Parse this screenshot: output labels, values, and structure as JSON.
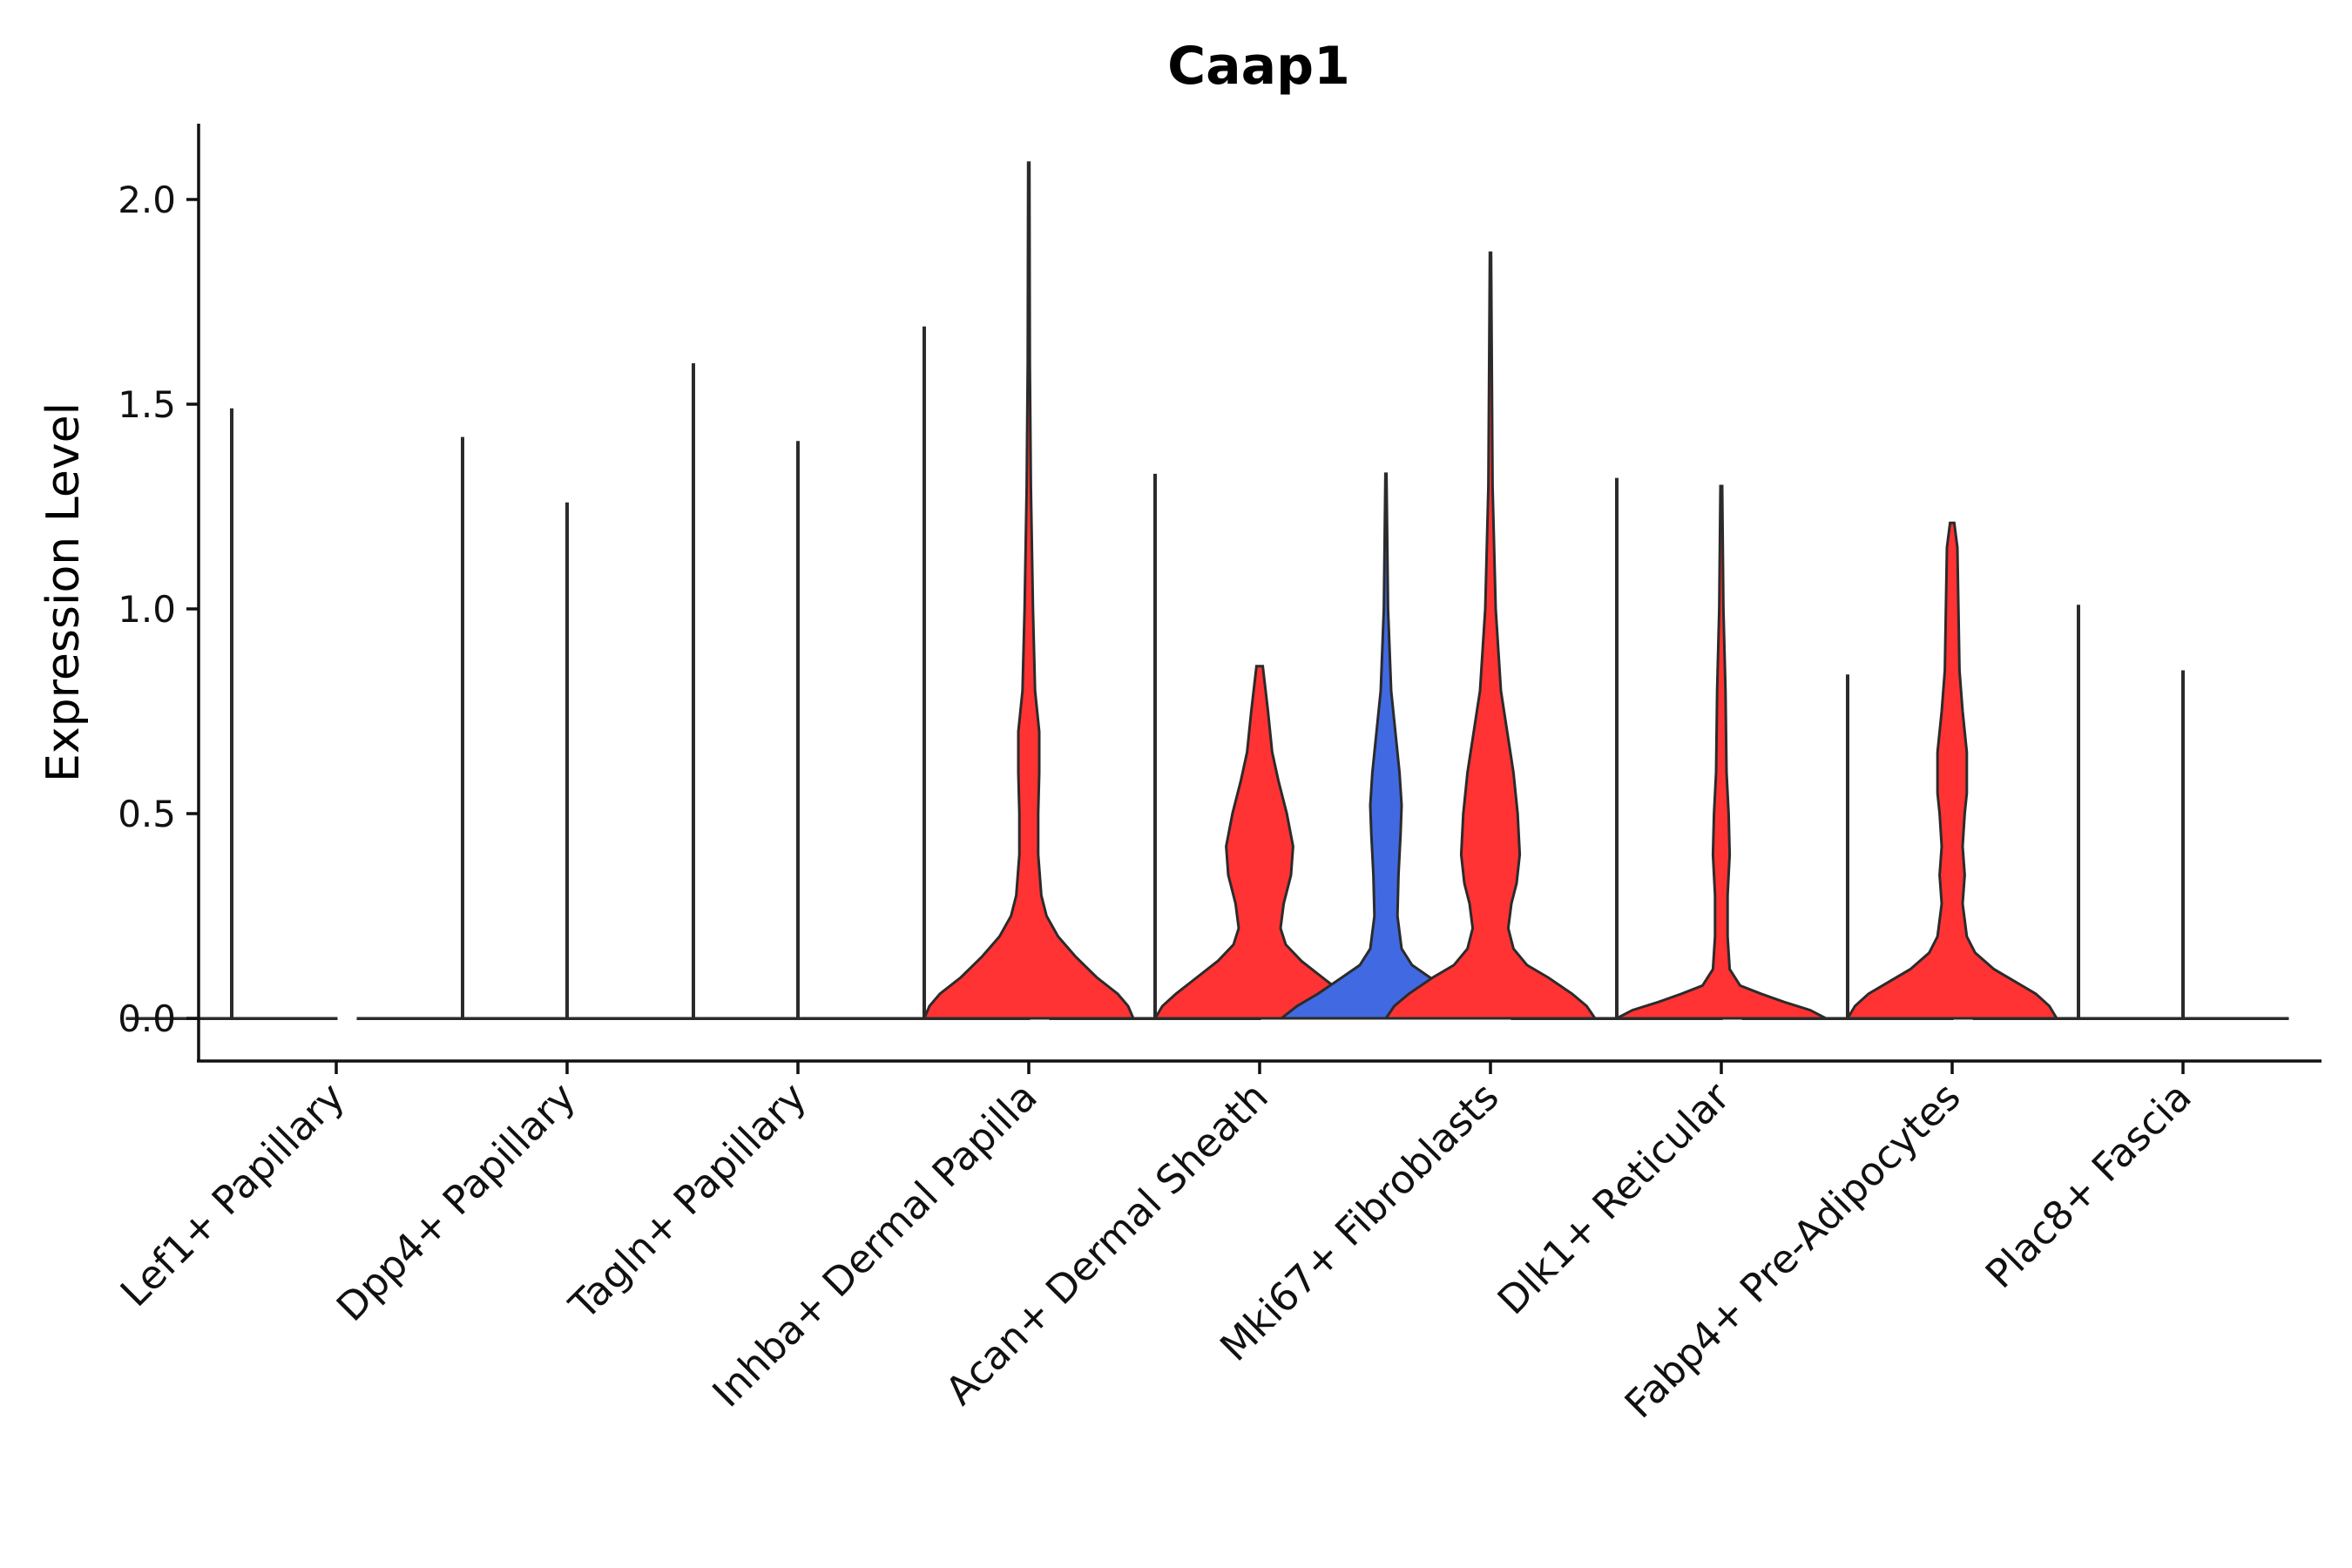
{
  "chart_data": {
    "type": "violin",
    "title": "Caap1",
    "xlabel": "",
    "ylabel": "Expression Level",
    "ylim": [
      -0.1,
      2.2
    ],
    "yticks": [
      "0.0",
      "0.5",
      "1.0",
      "1.5",
      "2.0"
    ],
    "categories": [
      "Lef1+ Papillary",
      "Dpp4+ Papillary",
      "Tagln+ Papillary",
      "Inhba+ Dermal Papilla",
      "Acan+ Dermal Sheath",
      "Mki67+ Fibroblasts",
      "Dlk1+ Reticular",
      "Fabp4+ Pre-Adipocytes",
      "Plac8+ Fascia"
    ],
    "split_groups": [
      "left",
      "right"
    ],
    "colors": {
      "neutral": "#555555",
      "blue": "#4169e1",
      "red": "#ff3333"
    },
    "violins": [
      {
        "category": "Lef1+ Papillary",
        "side": "left",
        "max": 1.49,
        "fill": "none",
        "profile": []
      },
      {
        "category": "Dpp4+ Papillary",
        "side": "left",
        "max": 1.42,
        "fill": "none",
        "profile": []
      },
      {
        "category": "Dpp4+ Papillary",
        "side": "right",
        "max": 1.26,
        "fill": "none",
        "profile": []
      },
      {
        "category": "Tagln+ Papillary",
        "side": "left",
        "max": 1.6,
        "fill": "none",
        "profile": []
      },
      {
        "category": "Tagln+ Papillary",
        "side": "right",
        "max": 1.41,
        "fill": "none",
        "profile": []
      },
      {
        "category": "Inhba+ Dermal Papilla",
        "side": "left",
        "max": 1.69,
        "fill": "none",
        "profile": []
      },
      {
        "category": "Inhba+ Dermal Papilla",
        "side": "right",
        "max": 2.09,
        "fill": "red",
        "profile": [
          [
            0,
            1.0
          ],
          [
            0.03,
            0.95
          ],
          [
            0.06,
            0.85
          ],
          [
            0.1,
            0.65
          ],
          [
            0.15,
            0.45
          ],
          [
            0.2,
            0.28
          ],
          [
            0.25,
            0.17
          ],
          [
            0.3,
            0.12
          ],
          [
            0.4,
            0.09
          ],
          [
            0.5,
            0.09
          ],
          [
            0.6,
            0.1
          ],
          [
            0.7,
            0.1
          ],
          [
            0.8,
            0.06
          ],
          [
            1.0,
            0.04
          ],
          [
            1.3,
            0.02
          ],
          [
            1.6,
            0.01
          ],
          [
            2.09,
            0.006
          ]
        ]
      },
      {
        "category": "Acan+ Dermal Sheath",
        "side": "left",
        "max": 1.33,
        "fill": "none",
        "profile": []
      },
      {
        "category": "Acan+ Dermal Sheath",
        "side": "right",
        "max": 0.86,
        "fill": "red",
        "profile": [
          [
            0,
            1.0
          ],
          [
            0.03,
            0.93
          ],
          [
            0.06,
            0.8
          ],
          [
            0.1,
            0.6
          ],
          [
            0.14,
            0.4
          ],
          [
            0.18,
            0.25
          ],
          [
            0.22,
            0.2
          ],
          [
            0.28,
            0.23
          ],
          [
            0.35,
            0.3
          ],
          [
            0.42,
            0.32
          ],
          [
            0.5,
            0.26
          ],
          [
            0.58,
            0.18
          ],
          [
            0.65,
            0.12
          ],
          [
            0.75,
            0.08
          ],
          [
            0.86,
            0.03
          ]
        ]
      },
      {
        "category": "Mki67+ Fibroblasts",
        "side": "left",
        "max": 1.33,
        "fill": "blue",
        "profile": [
          [
            0,
            1.0
          ],
          [
            0.03,
            0.85
          ],
          [
            0.06,
            0.65
          ],
          [
            0.1,
            0.42
          ],
          [
            0.13,
            0.25
          ],
          [
            0.17,
            0.15
          ],
          [
            0.25,
            0.11
          ],
          [
            0.35,
            0.12
          ],
          [
            0.45,
            0.14
          ],
          [
            0.52,
            0.15
          ],
          [
            0.6,
            0.13
          ],
          [
            0.7,
            0.09
          ],
          [
            0.8,
            0.05
          ],
          [
            1.0,
            0.02
          ],
          [
            1.33,
            0.005
          ]
        ]
      },
      {
        "category": "Mki67+ Fibroblasts",
        "side": "right",
        "max": 1.87,
        "fill": "red",
        "profile": [
          [
            0,
            1.0
          ],
          [
            0.03,
            0.92
          ],
          [
            0.06,
            0.78
          ],
          [
            0.1,
            0.55
          ],
          [
            0.13,
            0.35
          ],
          [
            0.17,
            0.22
          ],
          [
            0.22,
            0.17
          ],
          [
            0.28,
            0.2
          ],
          [
            0.33,
            0.25
          ],
          [
            0.4,
            0.28
          ],
          [
            0.5,
            0.26
          ],
          [
            0.6,
            0.22
          ],
          [
            0.7,
            0.16
          ],
          [
            0.8,
            0.1
          ],
          [
            1.0,
            0.05
          ],
          [
            1.3,
            0.02
          ],
          [
            1.87,
            0.006
          ]
        ]
      },
      {
        "category": "Dlk1+ Reticular",
        "side": "left",
        "max": 1.32,
        "fill": "none",
        "profile": []
      },
      {
        "category": "Dlk1+ Reticular",
        "side": "right",
        "max": 1.3,
        "fill": "red",
        "profile": [
          [
            0,
            1.0
          ],
          [
            0.02,
            0.85
          ],
          [
            0.04,
            0.6
          ],
          [
            0.06,
            0.38
          ],
          [
            0.08,
            0.18
          ],
          [
            0.12,
            0.08
          ],
          [
            0.2,
            0.06
          ],
          [
            0.3,
            0.06
          ],
          [
            0.4,
            0.08
          ],
          [
            0.5,
            0.07
          ],
          [
            0.6,
            0.05
          ],
          [
            0.8,
            0.04
          ],
          [
            1.0,
            0.02
          ],
          [
            1.3,
            0.008
          ]
        ]
      },
      {
        "category": "Fabp4+ Pre-Adipocytes",
        "side": "left",
        "max": 0.84,
        "fill": "none",
        "profile": []
      },
      {
        "category": "Fabp4+ Pre-Adipocytes",
        "side": "right",
        "max": 1.21,
        "fill": "red",
        "profile": [
          [
            0,
            1.0
          ],
          [
            0.03,
            0.93
          ],
          [
            0.06,
            0.8
          ],
          [
            0.09,
            0.6
          ],
          [
            0.12,
            0.4
          ],
          [
            0.16,
            0.22
          ],
          [
            0.2,
            0.14
          ],
          [
            0.28,
            0.1
          ],
          [
            0.35,
            0.12
          ],
          [
            0.42,
            0.1
          ],
          [
            0.5,
            0.12
          ],
          [
            0.55,
            0.14
          ],
          [
            0.65,
            0.14
          ],
          [
            0.75,
            0.1
          ],
          [
            0.85,
            0.07
          ],
          [
            1.0,
            0.06
          ],
          [
            1.15,
            0.05
          ],
          [
            1.21,
            0.02
          ]
        ]
      },
      {
        "category": "Plac8+ Fascia",
        "side": "left",
        "max": 1.01,
        "fill": "none",
        "profile": []
      },
      {
        "category": "Plac8+ Fascia",
        "side": "right",
        "max": 0.85,
        "fill": "none",
        "profile": []
      }
    ]
  }
}
